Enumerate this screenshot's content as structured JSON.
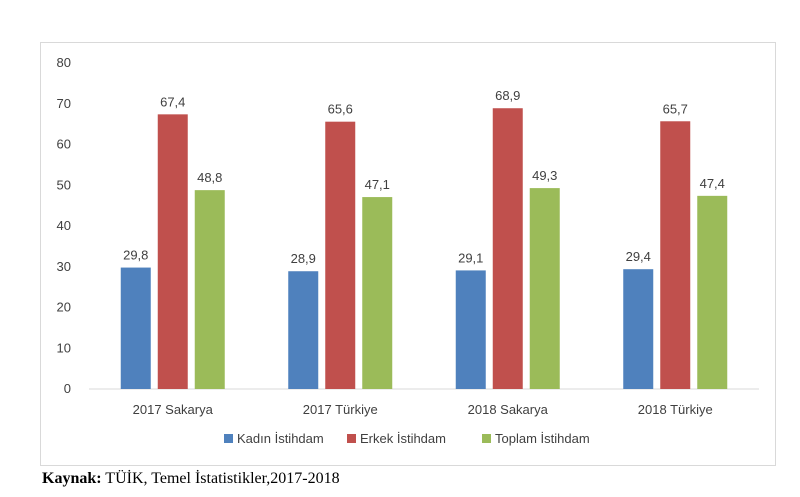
{
  "chart_data": {
    "type": "bar",
    "title": "",
    "xlabel": "",
    "ylabel": "",
    "ylim": [
      0,
      80
    ],
    "yticks": [
      0,
      10,
      20,
      30,
      40,
      50,
      60,
      70,
      80
    ],
    "grid": false,
    "legend_position": "bottom",
    "categories": [
      "2017 Sakarya",
      "2017 Türkiye",
      "2018 Sakarya",
      "2018 Türkiye"
    ],
    "series": [
      {
        "name": "Kadın İstihdam",
        "color": "#4f81bd",
        "values": [
          29.8,
          28.9,
          29.1,
          29.4
        ],
        "labels": [
          "29,8",
          "28,9",
          "29,1",
          "29,4"
        ]
      },
      {
        "name": "Erkek İstihdam",
        "color": "#c0504d",
        "values": [
          67.4,
          65.6,
          68.9,
          65.7
        ],
        "labels": [
          "67,4",
          "65,6",
          "68,9",
          "65,7"
        ]
      },
      {
        "name": "Toplam İstihdam",
        "color": "#9bbb59",
        "values": [
          48.8,
          47.1,
          49.3,
          47.4
        ],
        "labels": [
          "48,8",
          "47,1",
          "49,3",
          "47,4"
        ]
      }
    ]
  },
  "source": {
    "label": "Kaynak:",
    "text": " TÜİK, Temel İstatistikler,2017-2018"
  }
}
